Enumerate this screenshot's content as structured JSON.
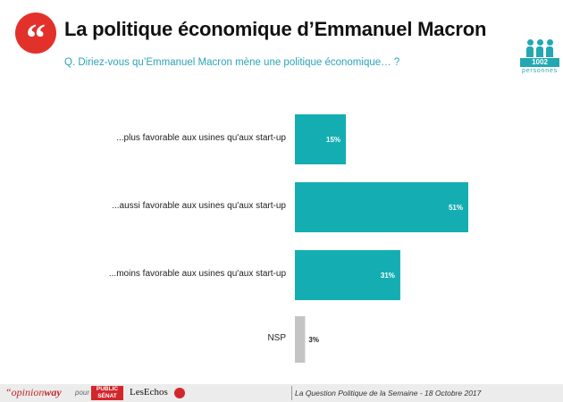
{
  "header": {
    "quote_mark": "“",
    "title": "La politique économique d’Emmanuel Macron",
    "question": "Q. Diriez-vous qu’Emmanuel Macron mène une politique économique… ?"
  },
  "sample": {
    "count": "1002",
    "label": "personnes",
    "icon": "people-icon"
  },
  "chart_data": {
    "type": "bar",
    "orientation": "horizontal",
    "categories": [
      "...plus favorable aux usines qu'aux start-up",
      "...aussi favorable aux usines qu'aux start-up",
      "...moins favorable aux usines qu'aux start-up",
      "NSP"
    ],
    "values": [
      15,
      51,
      31,
      3
    ],
    "value_labels": [
      "15%",
      "51%",
      "31%",
      "3%"
    ],
    "colors": [
      "#14aeb2",
      "#14aeb2",
      "#14aeb2",
      "#c4c4c4"
    ],
    "label_colors": [
      "#ffffff",
      "#ffffff",
      "#ffffff",
      "#222222"
    ],
    "xlim": [
      0,
      51
    ],
    "grid": false
  },
  "footer": {
    "brand_prefix": "“opinion",
    "brand_suffix": "way",
    "pour": "pour",
    "partner_1": "PUBLIC SÉNAT",
    "partner_2": "LesEchos",
    "caption": "La Question Politique de la Semaine - 18 Octobre 2017",
    "accent": "#c0282a"
  }
}
